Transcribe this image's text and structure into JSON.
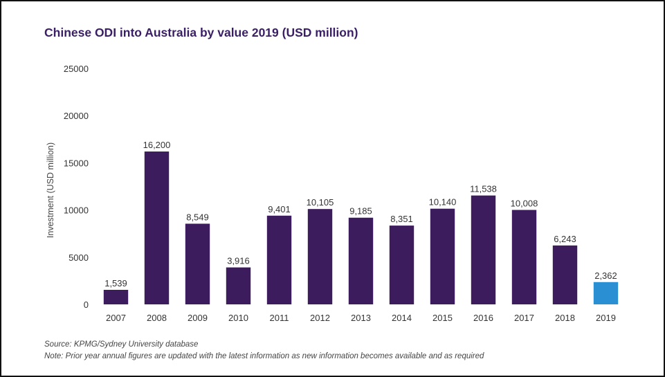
{
  "chart_data": {
    "type": "bar",
    "title": "Chinese ODI into Australia by value 2019 (USD million)",
    "xlabel": "",
    "ylabel": "Investment (USD million)",
    "categories": [
      "2007",
      "2008",
      "2009",
      "2010",
      "2011",
      "2012",
      "2013",
      "2014",
      "2015",
      "2016",
      "2017",
      "2018",
      "2019"
    ],
    "values": [
      1539,
      16200,
      8549,
      3916,
      9401,
      10105,
      9185,
      8351,
      10140,
      11538,
      10008,
      6243,
      2362
    ],
    "data_labels": [
      "1,539",
      "16,200",
      "8,549",
      "3,916",
      "9,401",
      "10,105",
      "9,185",
      "8,351",
      "10,140",
      "11,538",
      "10,008",
      "6,243",
      "2,362"
    ],
    "ylim": [
      0,
      25000
    ],
    "yticks": [
      "0",
      "5000",
      "10000",
      "15000",
      "20000",
      "25000"
    ],
    "ytick_values": [
      0,
      5000,
      10000,
      15000,
      20000,
      25000
    ],
    "grid": false,
    "legend": "none",
    "colors": {
      "bar": "#3d1c5e",
      "highlight": "#2b8fd4",
      "title": "#3a1f66"
    },
    "highlight_index": 12
  },
  "notes": {
    "source": "Source: KPMG/Sydney University database",
    "note": "Note: Prior year annual figures are updated with the latest information as new information becomes available and as required"
  }
}
